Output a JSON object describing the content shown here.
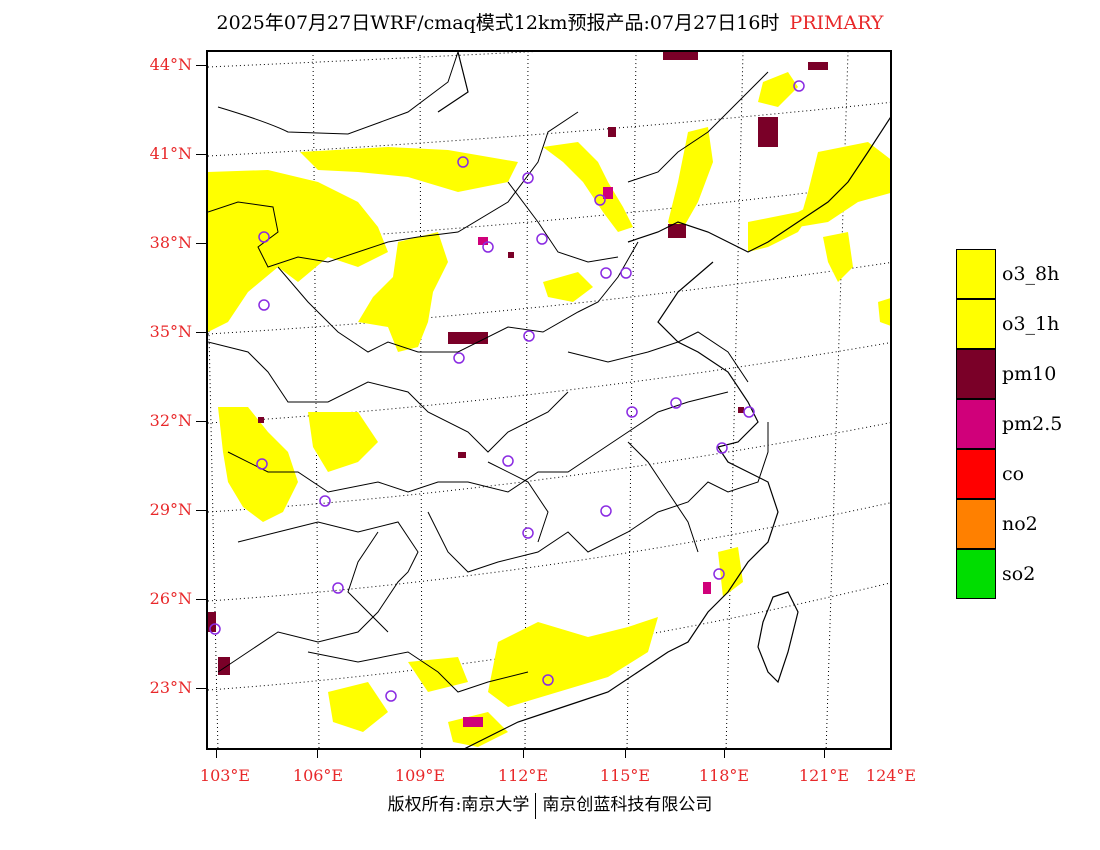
{
  "title": {
    "main": "2025年07月27日WRF/cmaq模式12km预报产品:07月27日16时",
    "tag": "PRIMARY"
  },
  "map": {
    "lat_labels": [
      "44°N",
      "41°N",
      "38°N",
      "35°N",
      "32°N",
      "29°N",
      "26°N",
      "23°N"
    ],
    "lon_labels": [
      "103°E",
      "106°E",
      "109°E",
      "112°E",
      "115°E",
      "118°E",
      "121°E",
      "124°E"
    ],
    "colors": {
      "land_line": "#000000",
      "grid_line": "#000000",
      "station": "#8a2be2"
    }
  },
  "legend": {
    "items": [
      {
        "label": "o3_8h",
        "color": "#ffff00"
      },
      {
        "label": "o3_1h",
        "color": "#ffff00"
      },
      {
        "label": "pm10",
        "color": "#7a0028"
      },
      {
        "label": "pm2.5",
        "color": "#d0007a"
      },
      {
        "label": "co",
        "color": "#ff0000"
      },
      {
        "label": "no2",
        "color": "#ff8000"
      },
      {
        "label": "so2",
        "color": "#00dd00"
      }
    ]
  },
  "footer": {
    "left": "版权所有:南京大学",
    "right": "南京创蓝科技有限公司"
  }
}
